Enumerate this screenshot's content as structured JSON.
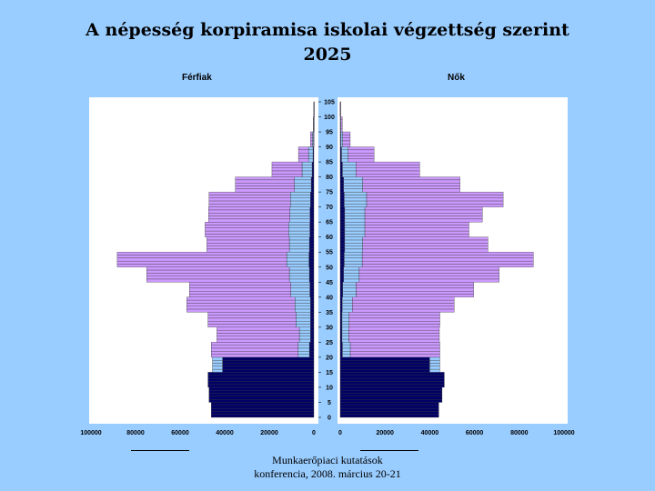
{
  "title": "A népesség korpiramisa iskolai végzettség szerint",
  "subtitle": "2025",
  "footer": {
    "line1": "Munkaerőpiaci kutatások",
    "line2": "konferencia, 2008. március 20-21"
  },
  "chart_data": {
    "type": "bar",
    "orientation": "population-pyramid",
    "left_label": "Férfiak",
    "right_label": "Nők",
    "age_ticks": [
      "105",
      "100",
      "95",
      "90",
      "85",
      "80",
      "75",
      "70",
      "65",
      "60",
      "55",
      "50",
      "45",
      "40",
      "35",
      "30",
      "25",
      "20",
      "15",
      "10",
      "5",
      "0"
    ],
    "x_ticks_left": [
      "100000",
      "80000",
      "60000",
      "40000",
      "20000",
      "0"
    ],
    "x_ticks_right": [
      "0",
      "20000",
      "40000",
      "60000",
      "80000",
      "100000"
    ],
    "xlim": [
      0,
      100000
    ],
    "ylim": [
      0,
      105
    ],
    "grid": false,
    "age_groups": [
      "0",
      "5",
      "10",
      "15",
      "20",
      "25",
      "30",
      "35",
      "40",
      "45",
      "50",
      "55",
      "60",
      "65",
      "70",
      "75",
      "80",
      "85",
      "90",
      "95",
      "100"
    ],
    "series_colors": [
      "#000066",
      "#99ccff",
      "#cc99ff"
    ],
    "series": [
      {
        "sex": "Férfiak",
        "values_by_level": [
          [
            46000,
            47000,
            47500,
            41000,
            2000,
            1500,
            1500,
            1500,
            1800,
            2000,
            2200,
            2000,
            1800,
            1700,
            1500,
            1200,
            800,
            400,
            150,
            40,
            5
          ],
          [
            0,
            0,
            0,
            4500,
            5000,
            5000,
            6500,
            7000,
            8500,
            9000,
            10000,
            9000,
            9500,
            9000,
            9000,
            7500,
            4500,
            2000,
            500,
            100,
            10
          ],
          [
            0,
            0,
            0,
            0,
            39000,
            37000,
            39500,
            48500,
            45500,
            64000,
            76000,
            37000,
            37500,
            36500,
            36500,
            26500,
            13500,
            4500,
            900,
            160,
            15
          ]
        ]
      },
      {
        "sex": "Nők",
        "values_by_level": [
          [
            44000,
            45500,
            46500,
            40000,
            1000,
            800,
            800,
            900,
            1100,
            1500,
            1800,
            2000,
            2000,
            2000,
            1800,
            1500,
            1000,
            600,
            250,
            60,
            5
          ],
          [
            0,
            0,
            0,
            4500,
            3500,
            3000,
            3200,
            4500,
            6000,
            7000,
            8000,
            8000,
            9000,
            9000,
            10000,
            8500,
            6000,
            3000,
            900,
            200,
            15
          ],
          [
            0,
            0,
            0,
            0,
            40000,
            40500,
            40500,
            45500,
            52500,
            62500,
            76500,
            56000,
            46500,
            52500,
            61000,
            43500,
            28500,
            11500,
            3300,
            650,
            50
          ]
        ]
      }
    ]
  }
}
